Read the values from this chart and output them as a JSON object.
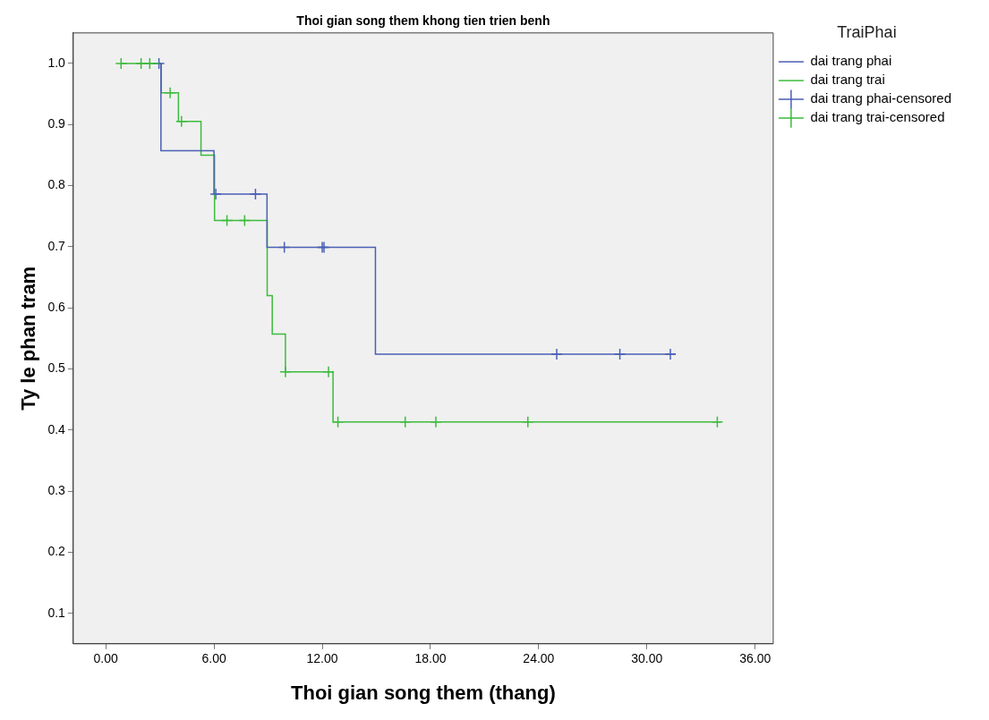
{
  "chart_data": {
    "type": "step",
    "title": "Thoi gian song them khong tien trien benh",
    "xlabel": "Thoi gian song them (thang)",
    "ylabel": "Ty le phan tram",
    "legend_title": "TraiPhai",
    "legend": "top right",
    "xlim": [
      -1.8,
      37
    ],
    "xticks": [
      {
        "value": 0,
        "label": "0.00"
      },
      {
        "value": 6,
        "label": "6.00"
      },
      {
        "value": 12,
        "label": "12.00"
      },
      {
        "value": 18,
        "label": "18.00"
      },
      {
        "value": 24,
        "label": "24.00"
      },
      {
        "value": 30,
        "label": "30.00"
      },
      {
        "value": 36,
        "label": "36.00"
      }
    ],
    "ylim": [
      0.05,
      1.05
    ],
    "yticks": [
      0.1,
      0.2,
      0.3,
      0.4,
      0.5,
      0.6,
      0.7,
      0.8,
      0.9,
      {
        "value": 1,
        "label": "1.0"
      }
    ],
    "series": [
      {
        "name": "dai trang phai",
        "color": "#4a5fb5",
        "marker": "none",
        "x": [
          2.95,
          3.06,
          6.0,
          8.94,
          14.95,
          31.6
        ],
        "values": [
          1.0,
          0.857,
          0.786,
          0.699,
          0.524,
          0.524
        ]
      },
      {
        "name": "dai trang trai",
        "color": "#3dbb3d",
        "marker": "none",
        "x": [
          0.85,
          3.08,
          4.03,
          5.28,
          6.03,
          8.95,
          9.23,
          9.96,
          12.6,
          34.1
        ],
        "values": [
          1.0,
          0.952,
          0.905,
          0.85,
          0.743,
          0.62,
          0.557,
          0.495,
          0.413,
          0.413
        ]
      },
      {
        "name": "dai trang phai-censored",
        "type": "scatter",
        "color": "#4a5fb5",
        "marker": "cross",
        "x": [
          2.95,
          6.1,
          8.3,
          9.9,
          12.0,
          12.1,
          25.0,
          28.5,
          31.3
        ],
        "values": [
          1.0,
          0.786,
          0.786,
          0.699,
          0.699,
          0.699,
          0.524,
          0.524,
          0.524
        ]
      },
      {
        "name": "dai trang trai-censored",
        "type": "scatter",
        "color": "#3dbb3d",
        "marker": "cross",
        "x": [
          0.85,
          1.96,
          2.44,
          3.57,
          4.2,
          6.72,
          7.7,
          9.96,
          12.35,
          12.87,
          16.6,
          18.3,
          23.4,
          33.9
        ],
        "values": [
          1.0,
          1.0,
          1.0,
          0.952,
          0.905,
          0.743,
          0.743,
          0.495,
          0.495,
          0.413,
          0.413,
          0.413,
          0.413,
          0.413
        ]
      }
    ]
  }
}
